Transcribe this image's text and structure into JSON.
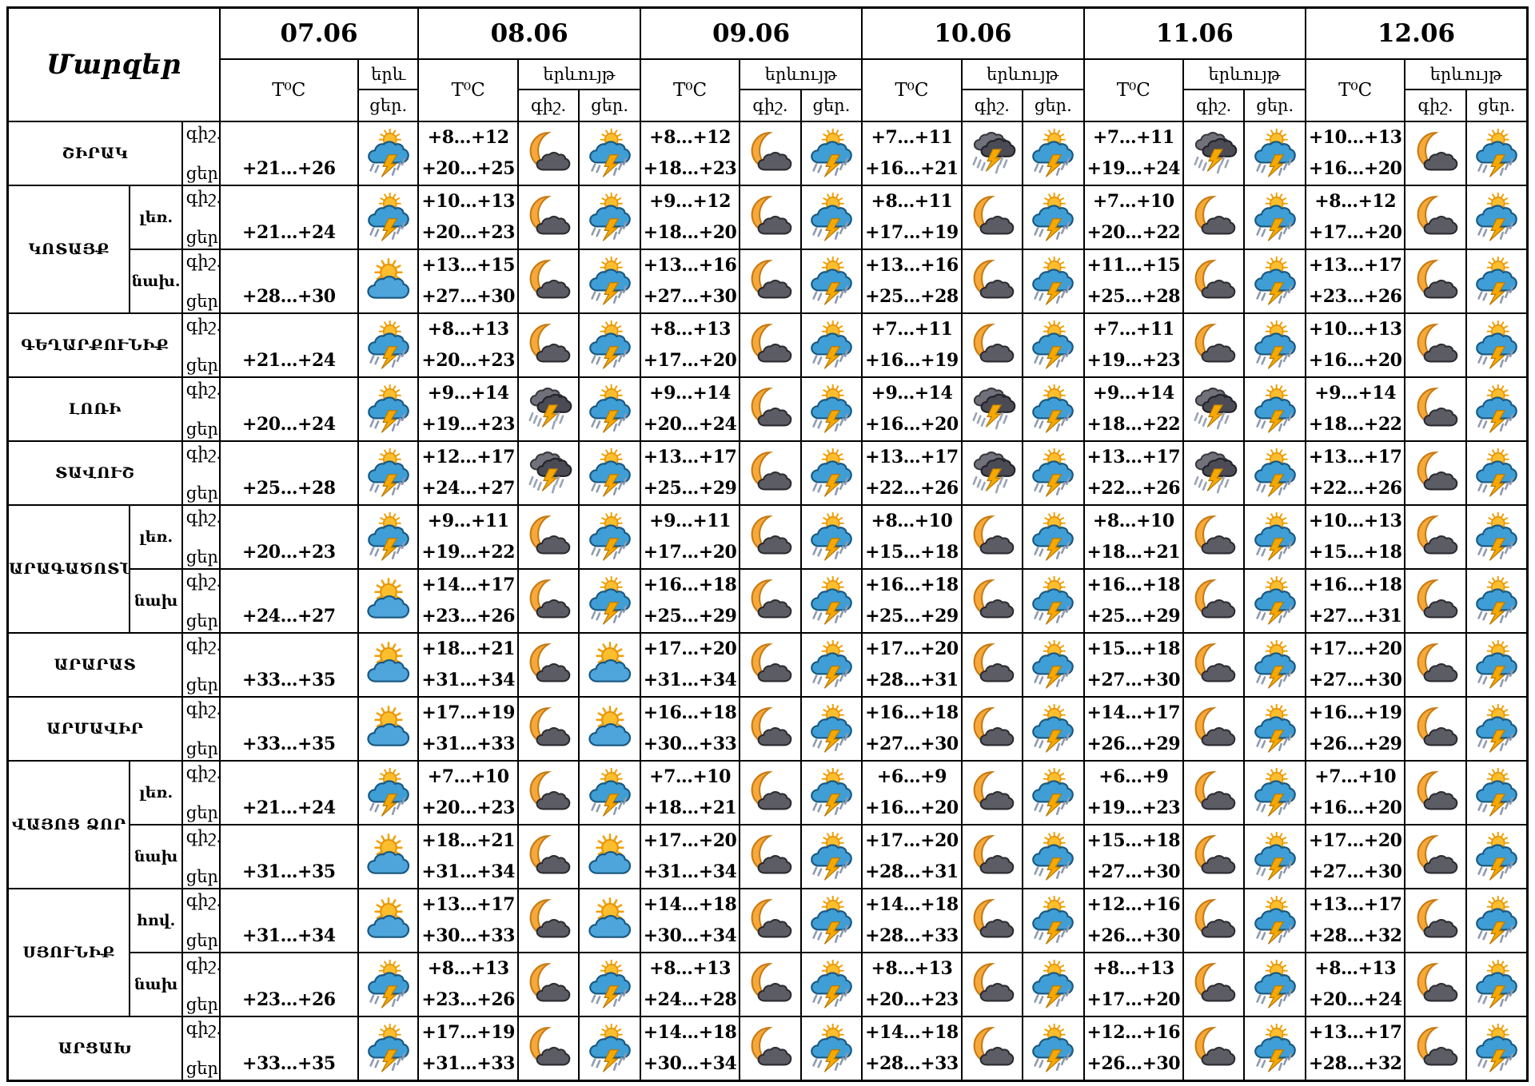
{
  "header": {
    "corner_title": "Մարզեր",
    "temp_label": "T⁰C",
    "phenomenon_label": "երևույթ",
    "phenomenon_label_short": "երև",
    "night_label": "գիշ.",
    "day_label": "ցեր.",
    "dates": [
      "07.06",
      "08.06",
      "09.06",
      "10.06",
      "11.06",
      "12.06"
    ]
  },
  "icons": {
    "ts": "sun-cloud-lightning-rain-icon",
    "sc": "sun-behind-cloud-icon",
    "mc": "moon-dark-cloud-icon",
    "dts": "dark-clouds-lightning-rain-icon"
  },
  "colors": {
    "grid": "#000000",
    "sun": "#fcbe2d",
    "sun_ray": "#f0a10a",
    "day_cloud": "#3f9ed6",
    "night_cloud": "#5c5c64",
    "lightning": "#f7a800",
    "moon": "#f6a83a",
    "rain": "#8e9ab0"
  },
  "rows": [
    {
      "region": "ՇԻՐԱԿ",
      "sub": "",
      "group_size": 1,
      "group_start": true,
      "d1": {
        "day_temp": "+21...+26",
        "day_icon": "ts"
      },
      "d2": {
        "night_temp": "+8...+12",
        "day_temp": "+20...+25",
        "night_icon": "mc",
        "day_icon": "ts"
      },
      "d3": {
        "night_temp": "+8...+12",
        "day_temp": "+18...+23",
        "night_icon": "mc",
        "day_icon": "ts"
      },
      "d4": {
        "night_temp": "+7...+11",
        "day_temp": "+16...+21",
        "night_icon": "dts",
        "day_icon": "ts"
      },
      "d5": {
        "night_temp": "+7...+11",
        "day_temp": "+19...+24",
        "night_icon": "dts",
        "day_icon": "ts"
      },
      "d6": {
        "night_temp": "+10...+13",
        "day_temp": "+16...+20",
        "night_icon": "mc",
        "day_icon": "ts"
      }
    },
    {
      "region": "ԿՈՏԱՅՔ",
      "sub": "լեռ.",
      "group_size": 2,
      "group_start": true,
      "d1": {
        "day_temp": "+21...+24",
        "day_icon": "ts"
      },
      "d2": {
        "night_temp": "+10...+13",
        "day_temp": "+20...+23",
        "night_icon": "mc",
        "day_icon": "ts"
      },
      "d3": {
        "night_temp": "+9...+12",
        "day_temp": "+18...+20",
        "night_icon": "mc",
        "day_icon": "ts"
      },
      "d4": {
        "night_temp": "+8...+11",
        "day_temp": "+17...+19",
        "night_icon": "mc",
        "day_icon": "ts"
      },
      "d5": {
        "night_temp": "+7...+10",
        "day_temp": "+20...+22",
        "night_icon": "mc",
        "day_icon": "ts"
      },
      "d6": {
        "night_temp": "+8...+12",
        "day_temp": "+17...+20",
        "night_icon": "mc",
        "day_icon": "ts"
      }
    },
    {
      "region": "",
      "sub": "նախ.",
      "group_size": 0,
      "group_start": false,
      "d1": {
        "day_temp": "+28...+30",
        "day_icon": "sc"
      },
      "d2": {
        "night_temp": "+13...+15",
        "day_temp": "+27...+30",
        "night_icon": "mc",
        "day_icon": "ts"
      },
      "d3": {
        "night_temp": "+13...+16",
        "day_temp": "+27...+30",
        "night_icon": "mc",
        "day_icon": "ts"
      },
      "d4": {
        "night_temp": "+13...+16",
        "day_temp": "+25...+28",
        "night_icon": "mc",
        "day_icon": "ts"
      },
      "d5": {
        "night_temp": "+11...+15",
        "day_temp": "+25...+28",
        "night_icon": "mc",
        "day_icon": "ts"
      },
      "d6": {
        "night_temp": "+13...+17",
        "day_temp": "+23...+26",
        "night_icon": "mc",
        "day_icon": "ts"
      }
    },
    {
      "region": "ԳԵՂԱՐՔՈՒՆԻՔ",
      "sub": "",
      "group_size": 1,
      "group_start": true,
      "d1": {
        "day_temp": "+21...+24",
        "day_icon": "ts"
      },
      "d2": {
        "night_temp": "+8...+13",
        "day_temp": "+20...+23",
        "night_icon": "mc",
        "day_icon": "ts"
      },
      "d3": {
        "night_temp": "+8...+13",
        "day_temp": "+17...+20",
        "night_icon": "mc",
        "day_icon": "ts"
      },
      "d4": {
        "night_temp": "+7...+11",
        "day_temp": "+16...+19",
        "night_icon": "mc",
        "day_icon": "ts"
      },
      "d5": {
        "night_temp": "+7...+11",
        "day_temp": "+19...+23",
        "night_icon": "mc",
        "day_icon": "ts"
      },
      "d6": {
        "night_temp": "+10...+13",
        "day_temp": "+16...+20",
        "night_icon": "mc",
        "day_icon": "ts"
      }
    },
    {
      "region": "ԼՈՌԻ",
      "sub": "",
      "group_size": 1,
      "group_start": true,
      "d1": {
        "day_temp": "+20...+24",
        "day_icon": "ts"
      },
      "d2": {
        "night_temp": "+9...+14",
        "day_temp": "+19...+23",
        "night_icon": "dts",
        "day_icon": "ts"
      },
      "d3": {
        "night_temp": "+9...+14",
        "day_temp": "+20...+24",
        "night_icon": "mc",
        "day_icon": "ts"
      },
      "d4": {
        "night_temp": "+9...+14",
        "day_temp": "+16...+20",
        "night_icon": "dts",
        "day_icon": "ts"
      },
      "d5": {
        "night_temp": "+9...+14",
        "day_temp": "+18...+22",
        "night_icon": "dts",
        "day_icon": "ts"
      },
      "d6": {
        "night_temp": "+9...+14",
        "day_temp": "+18...+22",
        "night_icon": "mc",
        "day_icon": "ts"
      }
    },
    {
      "region": "ՏԱՎՈՒՇ",
      "sub": "",
      "group_size": 1,
      "group_start": true,
      "d1": {
        "day_temp": "+25...+28",
        "day_icon": "ts"
      },
      "d2": {
        "night_temp": "+12...+17",
        "day_temp": "+24...+27",
        "night_icon": "dts",
        "day_icon": "ts"
      },
      "d3": {
        "night_temp": "+13...+17",
        "day_temp": "+25...+29",
        "night_icon": "mc",
        "day_icon": "ts"
      },
      "d4": {
        "night_temp": "+13...+17",
        "day_temp": "+22...+26",
        "night_icon": "dts",
        "day_icon": "ts"
      },
      "d5": {
        "night_temp": "+13...+17",
        "day_temp": "+22...+26",
        "night_icon": "dts",
        "day_icon": "ts"
      },
      "d6": {
        "night_temp": "+13...+17",
        "day_temp": "+22...+26",
        "night_icon": "mc",
        "day_icon": "ts"
      }
    },
    {
      "region": "ԱՐԱԳԱԾՈՏՆ",
      "sub": "լեռ.",
      "group_size": 2,
      "group_start": true,
      "d1": {
        "day_temp": "+20...+23",
        "day_icon": "ts"
      },
      "d2": {
        "night_temp": "+9...+11",
        "day_temp": "+19...+22",
        "night_icon": "mc",
        "day_icon": "ts"
      },
      "d3": {
        "night_temp": "+9...+11",
        "day_temp": "+17...+20",
        "night_icon": "mc",
        "day_icon": "ts"
      },
      "d4": {
        "night_temp": "+8...+10",
        "day_temp": "+15...+18",
        "night_icon": "mc",
        "day_icon": "ts"
      },
      "d5": {
        "night_temp": "+8...+10",
        "day_temp": "+18...+21",
        "night_icon": "mc",
        "day_icon": "ts"
      },
      "d6": {
        "night_temp": "+10...+13",
        "day_temp": "+15...+18",
        "night_icon": "mc",
        "day_icon": "ts"
      }
    },
    {
      "region": "",
      "sub": "նախ",
      "group_size": 0,
      "group_start": false,
      "d1": {
        "day_temp": "+24...+27",
        "day_icon": "sc"
      },
      "d2": {
        "night_temp": "+14...+17",
        "day_temp": "+23...+26",
        "night_icon": "mc",
        "day_icon": "ts"
      },
      "d3": {
        "night_temp": "+16...+18",
        "day_temp": "+25...+29",
        "night_icon": "mc",
        "day_icon": "ts"
      },
      "d4": {
        "night_temp": "+16...+18",
        "day_temp": "+25...+29",
        "night_icon": "mc",
        "day_icon": "ts"
      },
      "d5": {
        "night_temp": "+16...+18",
        "day_temp": "+25...+29",
        "night_icon": "mc",
        "day_icon": "ts"
      },
      "d6": {
        "night_temp": "+16...+18",
        "day_temp": "+27...+31",
        "night_icon": "mc",
        "day_icon": "ts"
      }
    },
    {
      "region": "ԱՐԱՐԱՏ",
      "sub": "",
      "group_size": 1,
      "group_start": true,
      "d1": {
        "day_temp": "+33...+35",
        "day_icon": "sc"
      },
      "d2": {
        "night_temp": "+18...+21",
        "day_temp": "+31...+34",
        "night_icon": "mc",
        "day_icon": "sc"
      },
      "d3": {
        "night_temp": "+17...+20",
        "day_temp": "+31...+34",
        "night_icon": "mc",
        "day_icon": "ts"
      },
      "d4": {
        "night_temp": "+17...+20",
        "day_temp": "+28...+31",
        "night_icon": "mc",
        "day_icon": "ts"
      },
      "d5": {
        "night_temp": "+15...+18",
        "day_temp": "+27...+30",
        "night_icon": "mc",
        "day_icon": "ts"
      },
      "d6": {
        "night_temp": "+17...+20",
        "day_temp": "+27...+30",
        "night_icon": "mc",
        "day_icon": "ts"
      }
    },
    {
      "region": "ԱՐՄԱՎԻՐ",
      "sub": "",
      "group_size": 1,
      "group_start": true,
      "d1": {
        "day_temp": "+33...+35",
        "day_icon": "sc"
      },
      "d2": {
        "night_temp": "+17...+19",
        "day_temp": "+31...+33",
        "night_icon": "mc",
        "day_icon": "sc"
      },
      "d3": {
        "night_temp": "+16...+18",
        "day_temp": "+30...+33",
        "night_icon": "mc",
        "day_icon": "ts"
      },
      "d4": {
        "night_temp": "+16...+18",
        "day_temp": "+27...+30",
        "night_icon": "mc",
        "day_icon": "ts"
      },
      "d5": {
        "night_temp": "+14...+17",
        "day_temp": "+26...+29",
        "night_icon": "mc",
        "day_icon": "ts"
      },
      "d6": {
        "night_temp": "+16...+19",
        "day_temp": "+26...+29",
        "night_icon": "mc",
        "day_icon": "ts"
      }
    },
    {
      "region": "ՎԱՅՈՑ ՁՈՐ",
      "sub": "լեռ.",
      "group_size": 2,
      "group_start": true,
      "d1": {
        "day_temp": "+21...+24",
        "day_icon": "ts"
      },
      "d2": {
        "night_temp": "+7...+10",
        "day_temp": "+20...+23",
        "night_icon": "mc",
        "day_icon": "ts"
      },
      "d3": {
        "night_temp": "+7...+10",
        "day_temp": "+18...+21",
        "night_icon": "mc",
        "day_icon": "ts"
      },
      "d4": {
        "night_temp": "+6...+9",
        "day_temp": "+16...+20",
        "night_icon": "mc",
        "day_icon": "ts"
      },
      "d5": {
        "night_temp": "+6...+9",
        "day_temp": "+19...+23",
        "night_icon": "mc",
        "day_icon": "ts"
      },
      "d6": {
        "night_temp": "+7...+10",
        "day_temp": "+16...+20",
        "night_icon": "mc",
        "day_icon": "ts"
      }
    },
    {
      "region": "",
      "sub": "նախ",
      "group_size": 0,
      "group_start": false,
      "d1": {
        "day_temp": "+31...+35",
        "day_icon": "sc"
      },
      "d2": {
        "night_temp": "+18...+21",
        "day_temp": "+31...+34",
        "night_icon": "mc",
        "day_icon": "sc"
      },
      "d3": {
        "night_temp": "+17...+20",
        "day_temp": "+31...+34",
        "night_icon": "mc",
        "day_icon": "ts"
      },
      "d4": {
        "night_temp": "+17...+20",
        "day_temp": "+28...+31",
        "night_icon": "mc",
        "day_icon": "ts"
      },
      "d5": {
        "night_temp": "+15...+18",
        "day_temp": "+27...+30",
        "night_icon": "mc",
        "day_icon": "ts"
      },
      "d6": {
        "night_temp": "+17...+20",
        "day_temp": "+27...+30",
        "night_icon": "mc",
        "day_icon": "ts"
      }
    },
    {
      "region": "ՍՅՈՒՆԻՔ",
      "sub": "հով.",
      "group_size": 2,
      "group_start": true,
      "d1": {
        "day_temp": "+31...+34",
        "day_icon": "sc"
      },
      "d2": {
        "night_temp": "+13...+17",
        "day_temp": "+30...+33",
        "night_icon": "mc",
        "day_icon": "sc"
      },
      "d3": {
        "night_temp": "+14...+18",
        "day_temp": "+30...+34",
        "night_icon": "mc",
        "day_icon": "ts"
      },
      "d4": {
        "night_temp": "+14...+18",
        "day_temp": "+28...+33",
        "night_icon": "mc",
        "day_icon": "ts"
      },
      "d5": {
        "night_temp": "+12...+16",
        "day_temp": "+26...+30",
        "night_icon": "mc",
        "day_icon": "ts"
      },
      "d6": {
        "night_temp": "+13...+17",
        "day_temp": "+28...+32",
        "night_icon": "mc",
        "day_icon": "ts"
      }
    },
    {
      "region": "",
      "sub": "նախ",
      "group_size": 0,
      "group_start": false,
      "d1": {
        "day_temp": "+23...+26",
        "day_icon": "ts"
      },
      "d2": {
        "night_temp": "+8...+13",
        "day_temp": "+23...+26",
        "night_icon": "mc",
        "day_icon": "ts"
      },
      "d3": {
        "night_temp": "+8...+13",
        "day_temp": "+24...+28",
        "night_icon": "mc",
        "day_icon": "ts"
      },
      "d4": {
        "night_temp": "+8...+13",
        "day_temp": "+20...+23",
        "night_icon": "mc",
        "day_icon": "ts"
      },
      "d5": {
        "night_temp": "+8...+13",
        "day_temp": "+17...+20",
        "night_icon": "mc",
        "day_icon": "ts"
      },
      "d6": {
        "night_temp": "+8...+13",
        "day_temp": "+20...+24",
        "night_icon": "mc",
        "day_icon": "ts"
      }
    },
    {
      "region": "ԱՐՑԱԽ",
      "sub": "",
      "group_size": 1,
      "group_start": true,
      "d1": {
        "day_temp": "+33...+35",
        "day_icon": "ts"
      },
      "d2": {
        "night_temp": "+17...+19",
        "day_temp": "+31...+33",
        "night_icon": "mc",
        "day_icon": "ts"
      },
      "d3": {
        "night_temp": "+14...+18",
        "day_temp": "+30...+34",
        "night_icon": "mc",
        "day_icon": "ts"
      },
      "d4": {
        "night_temp": "+14...+18",
        "day_temp": "+28...+33",
        "night_icon": "mc",
        "day_icon": "ts"
      },
      "d5": {
        "night_temp": "+12...+16",
        "day_temp": "+26...+30",
        "night_icon": "mc",
        "day_icon": "ts"
      },
      "d6": {
        "night_temp": "+13...+17",
        "day_temp": "+28...+32",
        "night_icon": "mc",
        "day_icon": "ts"
      }
    }
  ]
}
